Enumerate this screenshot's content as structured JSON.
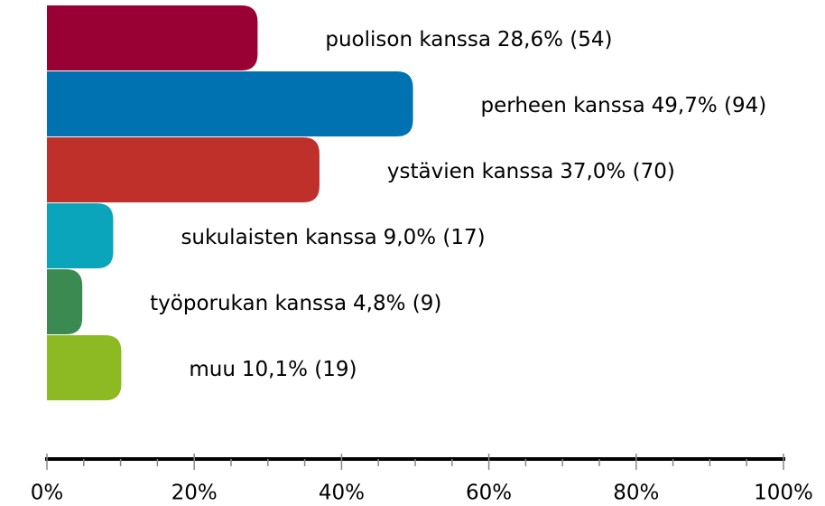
{
  "chart_data": {
    "type": "hbar",
    "categories": [
      "puolison kanssa",
      "perheen kanssa",
      "ystävien kanssa",
      "sukulaisten kanssa",
      "työporukan kanssa",
      "muu"
    ],
    "values": [
      28.6,
      49.7,
      37.0,
      9.0,
      4.8,
      10.1
    ],
    "value_labels": [
      "28,6% (54)",
      "49,7% (94)",
      "37,0% (70)",
      "9,0% (17)",
      "4,8% (9)",
      "10,1% (19)"
    ],
    "colors": [
      "#990033",
      "#0072b1",
      "#c0302a",
      "#0aa5bb",
      "#3a8a52",
      "#8db923"
    ],
    "xlim": [
      0,
      100
    ],
    "xticks": [
      {
        "value": 0,
        "label": "0%"
      },
      {
        "value": 20,
        "label": "20%"
      },
      {
        "value": 40,
        "label": "40%"
      },
      {
        "value": 60,
        "label": "60%"
      },
      {
        "value": 80,
        "label": "80%"
      },
      {
        "value": 100,
        "label": "100%"
      }
    ],
    "minor_xticks": [
      5,
      10,
      15,
      25,
      30,
      35,
      45,
      50,
      55,
      65,
      70,
      75,
      85,
      90,
      95
    ]
  }
}
